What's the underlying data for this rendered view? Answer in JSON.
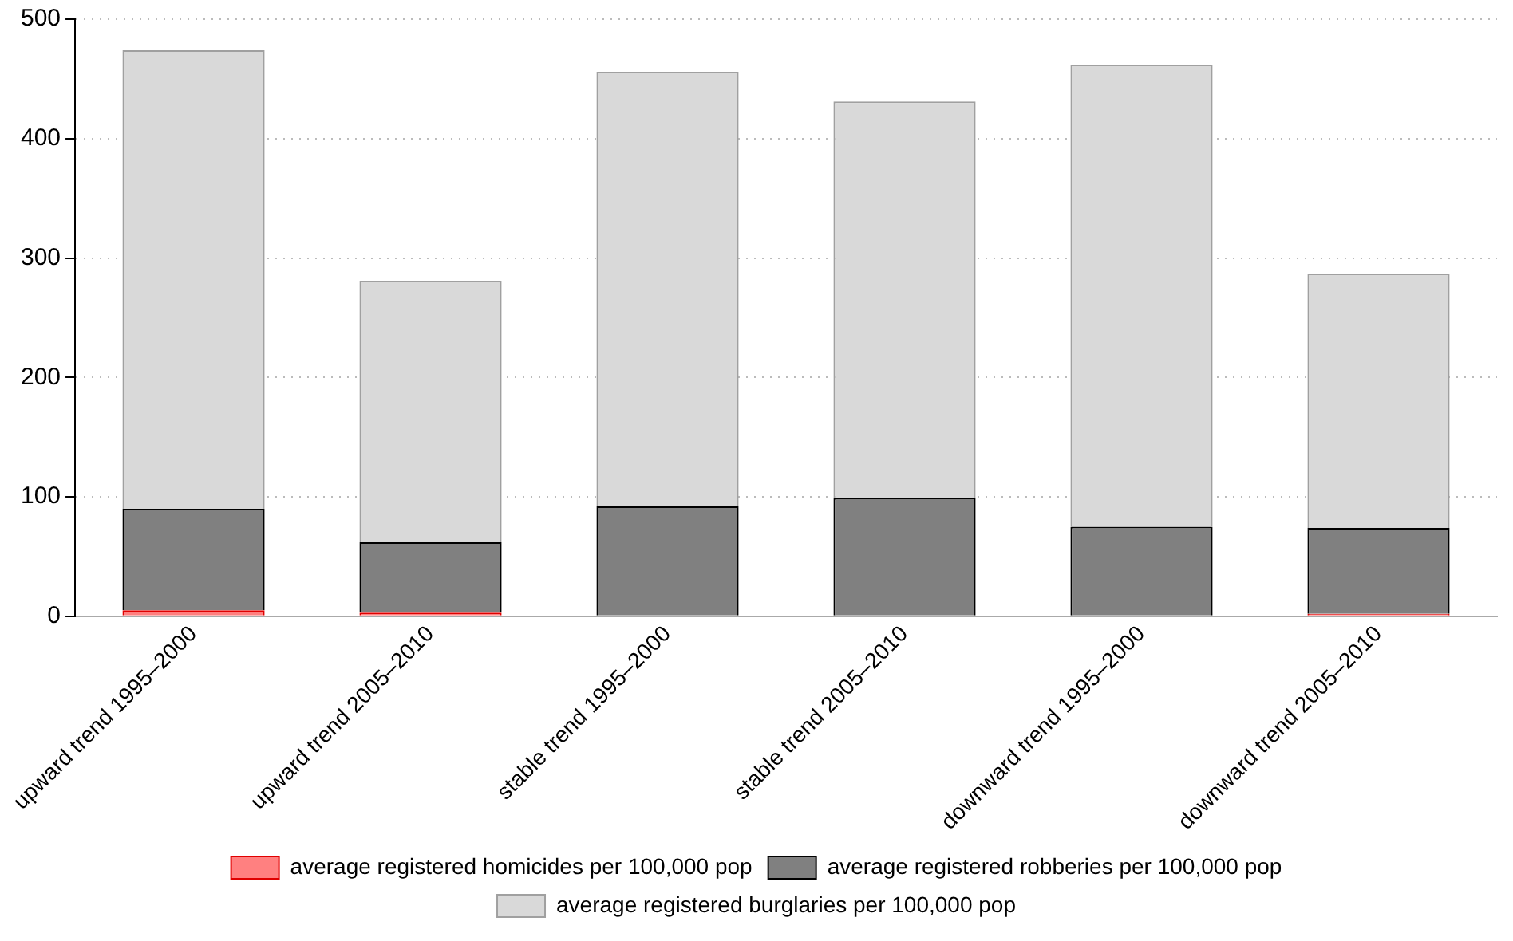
{
  "chart_data": {
    "type": "bar",
    "stacked": true,
    "categories": [
      "upward trend 1995–2000",
      "upward trend 2005–2010",
      "stable trend 1995–2000",
      "stable trend 2005–2010",
      "downward trend 1995–2000",
      "downward trend 2005–2010"
    ],
    "series": [
      {
        "name": "average registered homicides per 100,000 pop",
        "color": "#ff8080",
        "values": [
          5,
          3,
          null,
          null,
          null,
          2
        ]
      },
      {
        "name": "average registered robberies per 100,000 pop",
        "color": "#808080",
        "values": [
          85,
          59,
          92,
          99,
          75,
          72
        ]
      },
      {
        "name": "average registered burglaries per 100,000 pop",
        "color": "#d9d9d9",
        "values": [
          384,
          219,
          364,
          332,
          387,
          213
        ]
      }
    ],
    "ylim": [
      0,
      500
    ],
    "yticks": [
      0,
      100,
      200,
      300,
      400,
      500
    ],
    "grid": "y",
    "legend": "bottom"
  }
}
